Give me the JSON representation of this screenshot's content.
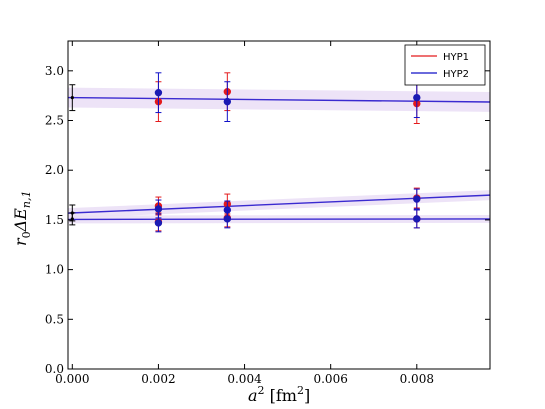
{
  "chart_data": {
    "type": "scatter",
    "title": "",
    "xlabel_main": "a",
    "xlabel_sup": "2",
    "xlabel_unit_open": " [fm",
    "xlabel_unit_sup": "2",
    "xlabel_unit_close": "]",
    "ylabel_main": "r",
    "ylabel_sub0": "0",
    "ylabel_delta": "ΔE",
    "ylabel_sub": "n,1",
    "xlim": [
      -0.0001,
      0.0097
    ],
    "ylim": [
      0.0,
      3.3
    ],
    "xticks": [
      0.0,
      0.002,
      0.004,
      0.006,
      0.008
    ],
    "xtick_labels": [
      "0.000",
      "0.002",
      "0.004",
      "0.006",
      "0.008"
    ],
    "yticks": [
      0.0,
      0.5,
      1.0,
      1.5,
      2.0,
      2.5,
      3.0
    ],
    "ytick_labels": [
      "0.0",
      "0.5",
      "1.0",
      "1.5",
      "2.0",
      "2.5",
      "3.0"
    ],
    "grid": false,
    "legend_position": "top-right",
    "colors": {
      "hyp1": "#e41a1c",
      "hyp2": "#1010c8",
      "point_fill": "#1a1ab4",
      "continuum": "#000000",
      "band": "#e8dcf5",
      "fit": "#3a2ad0"
    },
    "series": [
      {
        "name": "HYP1",
        "x": [
          0.002,
          0.0036,
          0.008
        ],
        "upper": [
          2.69,
          2.79,
          2.67
        ],
        "upper_err": [
          0.2,
          0.19,
          0.2
        ],
        "mid": [
          1.64,
          1.66,
          1.72
        ],
        "mid_err": [
          0.09,
          0.1,
          0.1
        ],
        "lower": [
          1.48,
          1.52,
          1.51
        ],
        "lower_err": [
          0.09,
          0.09,
          0.09
        ]
      },
      {
        "name": "HYP2",
        "x": [
          0.002,
          0.0036,
          0.008
        ],
        "upper": [
          2.78,
          2.69,
          2.73
        ],
        "upper_err": [
          0.2,
          0.2,
          0.2
        ],
        "mid": [
          1.61,
          1.6,
          1.71
        ],
        "mid_err": [
          0.09,
          0.09,
          0.1
        ],
        "lower": [
          1.47,
          1.51,
          1.51
        ],
        "lower_err": [
          0.09,
          0.09,
          0.09
        ]
      }
    ],
    "continuum": [
      {
        "x": 0.0,
        "y": 2.73,
        "err": 0.13
      },
      {
        "x": 0.0,
        "y": 1.57,
        "err": 0.08
      },
      {
        "x": 0.0,
        "y": 1.51,
        "err": 0.06
      }
    ],
    "fits": [
      {
        "y0": 2.73,
        "slope": -4.5,
        "band": 0.1
      },
      {
        "y0": 1.57,
        "slope": 18.5,
        "band": 0.05
      },
      {
        "y0": 1.505,
        "slope": 0.5,
        "band": 0.04
      }
    ]
  }
}
